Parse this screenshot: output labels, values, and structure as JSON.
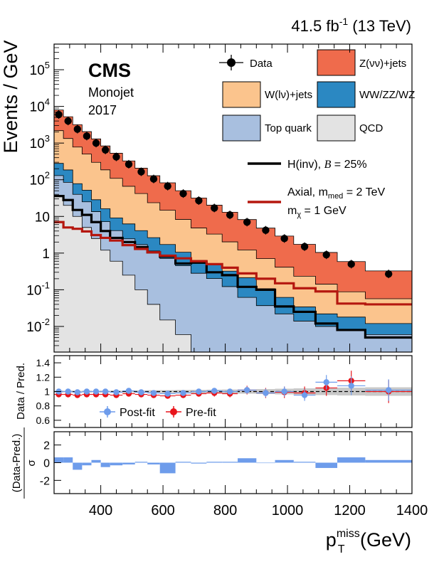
{
  "chart_data": [
    {
      "type": "area",
      "panel": "main",
      "header": "41.5 fb",
      "header_sup": "-1",
      "header_tail": " (13 TeV)",
      "experiment": "CMS",
      "category": "Monojet",
      "year": "2017",
      "ylabel": "Events / GeV",
      "yscale": "log",
      "ylim": [
        0.002,
        500000
      ],
      "xlim": [
        250,
        1400
      ],
      "yticks": [
        {
          "v": 100000,
          "b": "10",
          "e": "5"
        },
        {
          "v": 10000,
          "b": "10",
          "e": "4"
        },
        {
          "v": 1000,
          "b": "10",
          "e": "3"
        },
        {
          "v": 100,
          "b": "10",
          "e": "2"
        },
        {
          "v": 10,
          "b": "10",
          "e": ""
        },
        {
          "v": 1,
          "b": "1",
          "e": ""
        },
        {
          "v": 0.1,
          "b": "10",
          "e": "-1"
        },
        {
          "v": 0.01,
          "b": "10",
          "e": "-2"
        }
      ],
      "bins": [
        250,
        280,
        310,
        340,
        370,
        400,
        430,
        470,
        510,
        550,
        590,
        640,
        690,
        740,
        790,
        840,
        900,
        960,
        1020,
        1090,
        1160,
        1250,
        1400
      ],
      "stack": [
        {
          "name": "QCD",
          "color": "#e3e3e3",
          "values": [
            35,
            20,
            10,
            5,
            2.5,
            1.2,
            0.6,
            0.25,
            0.1,
            0.04,
            0.015,
            0.006,
            0.002,
            0.002,
            0.002,
            0.002,
            0.002,
            0.002,
            0.002,
            0.002,
            0.002,
            0.002
          ]
        },
        {
          "name": "Top quark",
          "color": "#a8bfdf",
          "values": [
            95,
            65,
            30,
            20,
            11,
            6,
            3.5,
            2.2,
            1.6,
            1.1,
            0.7,
            0.45,
            0.28,
            0.2,
            0.12,
            0.06,
            0.035,
            0.02,
            0.012,
            0.008,
            0.006,
            0.004
          ]
        },
        {
          "name": "WW/ZZ/WZ",
          "color": "#2b88c2",
          "values": [
            150,
            100,
            38,
            27,
            15,
            9,
            5,
            3.8,
            2.4,
            1.5,
            1.0,
            0.6,
            0.35,
            0.3,
            0.2,
            0.15,
            0.07,
            0.04,
            0.02,
            0.012,
            0.01,
            0.006
          ]
        },
        {
          "name": "W(lν)+jets",
          "color": "#fbc48d",
          "values": [
            1900,
            1150,
            700,
            450,
            270,
            170,
            100,
            60,
            38,
            21,
            13,
            7.2,
            4.2,
            2.8,
            1.7,
            1.0,
            0.6,
            0.35,
            0.2,
            0.12,
            0.07,
            0.045
          ]
        },
        {
          "name": "Z(νν)+jets",
          "color": "#ef6b4c",
          "values": [
            5800,
            3900,
            2400,
            1550,
            1000,
            650,
            420,
            260,
            165,
            105,
            68,
            42,
            27,
            17,
            11,
            7,
            4.1,
            2.5,
            1.5,
            0.9,
            0.5,
            0.27
          ]
        }
      ],
      "data_points": {
        "name": "Data",
        "x": [
          265,
          295,
          325,
          355,
          385,
          415,
          450,
          490,
          530,
          570,
          615,
          665,
          715,
          765,
          815,
          870,
          930,
          990,
          1055,
          1125,
          1205,
          1325
        ],
        "y": [
          6000,
          4000,
          2400,
          1550,
          1000,
          650,
          420,
          265,
          165,
          105,
          67,
          42,
          27,
          17,
          11,
          7,
          4.2,
          2.5,
          1.5,
          0.9,
          0.5,
          0.27
        ]
      },
      "signals": [
        {
          "name": "H(inv), B = 25%",
          "color": "#000000",
          "values": [
            36,
            28,
            15,
            11,
            7,
            4,
            2.6,
            2.0,
            1.45,
            1.05,
            0.8,
            0.52,
            0.55,
            0.3,
            0.25,
            0.12,
            0.1,
            0.035,
            0.025,
            0.012,
            0.008,
            0.005
          ]
        },
        {
          "name": "Axial, m_med = 2 TeV, m_χ = 1 GeV",
          "color": "#b5170f",
          "values": [
            7,
            5,
            4.6,
            3.9,
            3.1,
            2.6,
            2.2,
            1.65,
            1.3,
            1.05,
            0.85,
            0.72,
            0.6,
            0.5,
            0.4,
            0.28,
            0.2,
            0.15,
            0.11,
            0.09,
            0.042,
            0.04
          ]
        }
      ],
      "legend": {
        "data": "Data",
        "zjets": "Z(νν)+jets",
        "wjets": "W(lν)+jets",
        "diboson": "WW/ZZ/WZ",
        "top": "Top quark",
        "qcd": "QCD",
        "hinv_a": "H(inv), ",
        "hinv_b": "B",
        "hinv_c": " = 25%",
        "axial_line1": "Axial, m",
        "axial_sub1": "med",
        "axial_tail1": " = 2 TeV",
        "axial_line2": "m",
        "axial_sub2": "χ",
        "axial_tail2": " = 1 GeV"
      }
    },
    {
      "type": "scatter",
      "panel": "ratio",
      "ylabel": "Data / Pred.",
      "ylim": [
        0.5,
        1.5
      ],
      "yticks": [
        "0.6",
        "0.8",
        "1",
        "1.2",
        "1.4"
      ],
      "legend": {
        "postfit": "Post-fit",
        "prefit": "Pre-fit"
      },
      "postfit": {
        "color": "#6e9ceb",
        "y": [
          1.0,
          1.0,
          0.99,
          1.0,
          1.0,
          1.0,
          0.99,
          1.01,
          0.99,
          0.98,
          0.97,
          0.98,
          1.0,
          1.01,
          1.0,
          1.02,
          0.98,
          1.0,
          0.95,
          1.13,
          1.08,
          1.02
        ],
        "err": [
          0.01,
          0.01,
          0.01,
          0.01,
          0.01,
          0.01,
          0.01,
          0.01,
          0.02,
          0.02,
          0.02,
          0.03,
          0.03,
          0.04,
          0.04,
          0.05,
          0.06,
          0.07,
          0.08,
          0.1,
          0.13,
          0.15
        ]
      },
      "prefit": {
        "color": "#e8141b",
        "y": [
          0.96,
          0.96,
          0.95,
          0.96,
          0.96,
          0.96,
          0.95,
          0.97,
          0.96,
          0.95,
          0.94,
          0.95,
          0.97,
          0.98,
          0.97,
          1.02,
          0.98,
          0.99,
          0.98,
          1.05,
          1.15,
          1.0
        ],
        "err": [
          0.01,
          0.01,
          0.01,
          0.01,
          0.01,
          0.01,
          0.02,
          0.02,
          0.02,
          0.02,
          0.03,
          0.03,
          0.04,
          0.05,
          0.05,
          0.06,
          0.07,
          0.08,
          0.09,
          0.11,
          0.14,
          0.16
        ]
      },
      "band_halfwidth": [
        0.01,
        0.01,
        0.01,
        0.01,
        0.01,
        0.01,
        0.012,
        0.014,
        0.016,
        0.018,
        0.02,
        0.022,
        0.024,
        0.026,
        0.028,
        0.03,
        0.035,
        0.04,
        0.045,
        0.05,
        0.055,
        0.06
      ]
    },
    {
      "type": "bar",
      "panel": "pull",
      "ylabel_num": "(Data-Pred.)",
      "ylabel_den": "σ",
      "ylim": [
        -3.5,
        3.5
      ],
      "yticks": [
        "-2",
        "0",
        "2"
      ],
      "color": "#6e9ceb",
      "values": [
        0.6,
        0.6,
        -0.8,
        -0.3,
        0.3,
        -0.5,
        -0.3,
        -0.2,
        0.1,
        -0.2,
        -1.2,
        0.1,
        -0.1,
        0.1,
        0.1,
        0.5,
        0.0,
        0.3,
        0.1,
        -0.6,
        0.6,
        0.3
      ]
    }
  ],
  "xaxis": {
    "label_base": "p",
    "label_sup": "miss",
    "label_sub": "T",
    "label_unit": " (GeV)",
    "ticks": [
      "400",
      "600",
      "800",
      "1000",
      "1200",
      "1400"
    ]
  }
}
